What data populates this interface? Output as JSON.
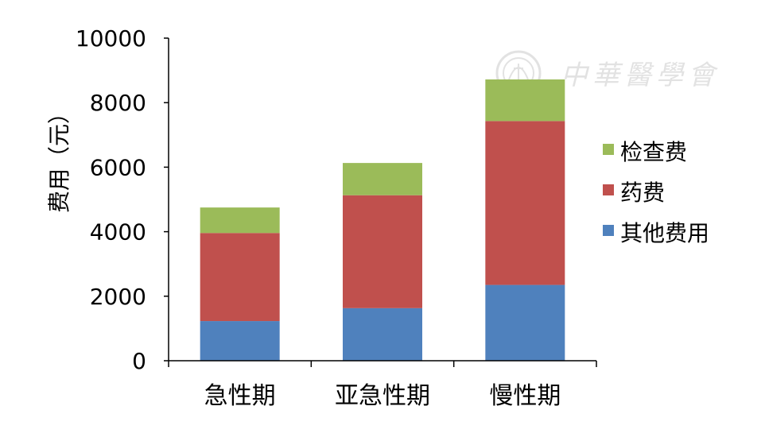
{
  "chart_data": {
    "type": "bar",
    "stacked": true,
    "categories": [
      "急性期",
      "亚急性期",
      "慢性期"
    ],
    "series": [
      {
        "name": "其他费用",
        "color": "#4F81BD",
        "values": [
          1230,
          1630,
          2350
        ]
      },
      {
        "name": "药费",
        "color": "#C0504D",
        "values": [
          2730,
          3500,
          5080
        ]
      },
      {
        "name": "检查费",
        "color": "#9BBB59",
        "values": [
          790,
          1000,
          1290
        ]
      }
    ],
    "ylabel": "费用（元）",
    "ylim": [
      0,
      10000
    ],
    "yticks": [
      0,
      2000,
      4000,
      6000,
      8000,
      10000
    ],
    "legend_position": "right",
    "legend_order": [
      "检查费",
      "药费",
      "其他费用"
    ],
    "grid": false
  },
  "watermark": {
    "text": "中華醫學會"
  }
}
